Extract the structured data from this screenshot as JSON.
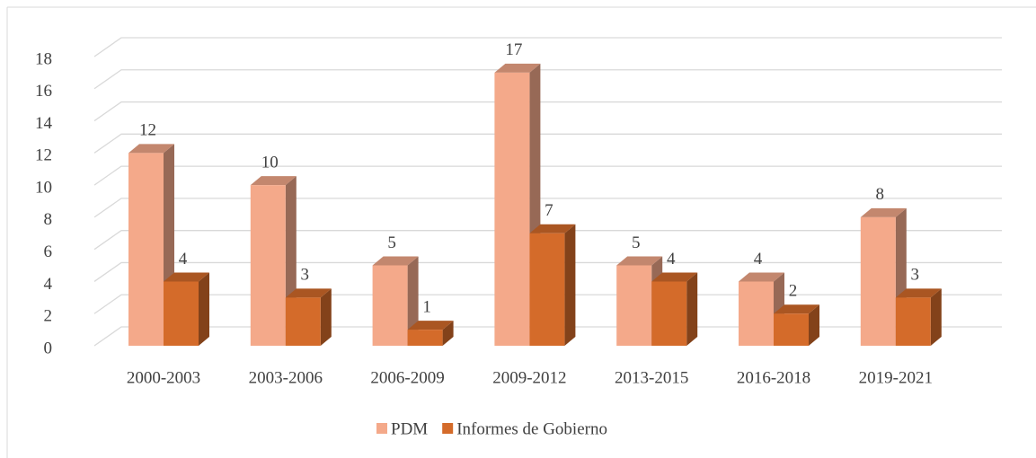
{
  "chart_data": {
    "type": "bar3d",
    "categories": [
      "2000-2003",
      "2003-2006",
      "2006-2009",
      "2009-2012",
      "2013-2015",
      "2016-2018",
      "2019-2021"
    ],
    "series": [
      {
        "name": "PDM",
        "color": "#f4a98a",
        "values": [
          12,
          10,
          5,
          17,
          5,
          4,
          8
        ]
      },
      {
        "name": "Informes de Gobierno",
        "color": "#d46b2a",
        "values": [
          4,
          3,
          1,
          7,
          4,
          2,
          3
        ]
      }
    ],
    "ylim": [
      0,
      18
    ],
    "yticks": [
      0,
      2,
      4,
      6,
      8,
      10,
      12,
      14,
      16,
      18
    ],
    "grid": true,
    "legend": "bottom",
    "data_labels": true
  }
}
